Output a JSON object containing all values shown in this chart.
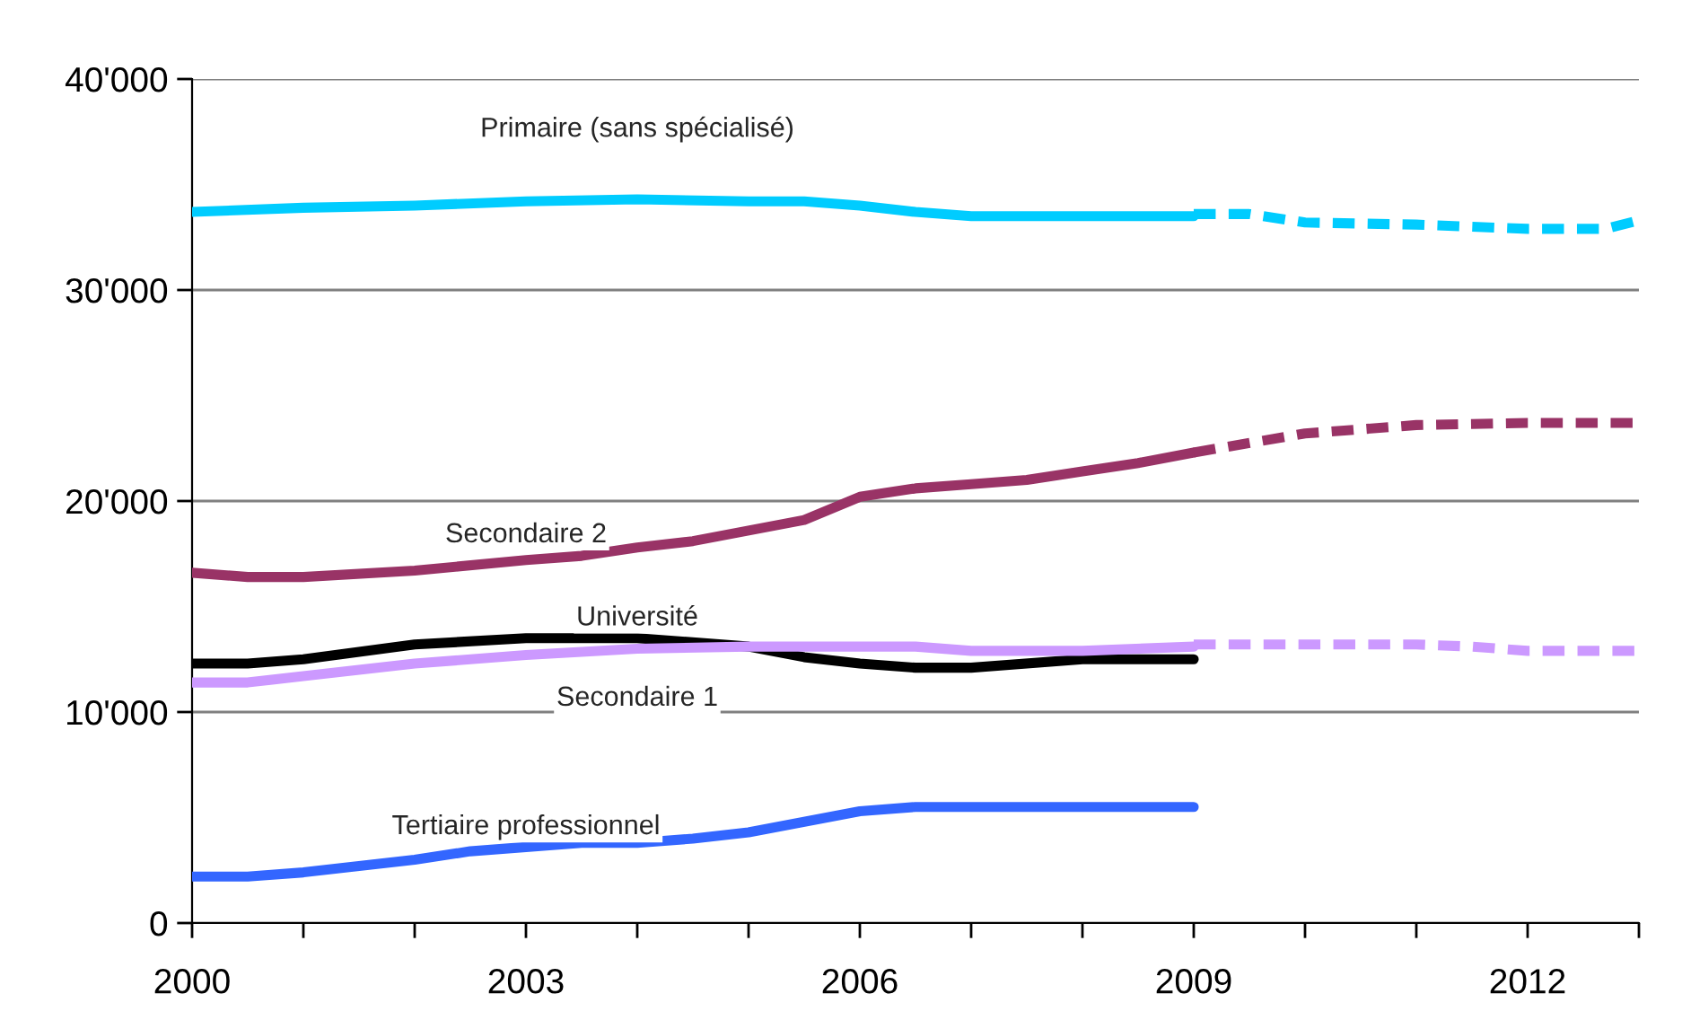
{
  "chart_data": {
    "type": "line",
    "xlim": [
      2000,
      2013
    ],
    "xticks": [
      2000,
      {
        "value": 2001,
        "label": null
      },
      {
        "value": 2002,
        "label": null
      },
      2003,
      {
        "value": 2004,
        "label": null
      },
      {
        "value": 2005,
        "label": null
      },
      2006,
      {
        "value": 2007,
        "label": null
      },
      {
        "value": 2008,
        "label": null
      },
      2009,
      {
        "value": 2010,
        "label": null
      },
      {
        "value": 2011,
        "label": null
      },
      2012,
      {
        "value": 2013,
        "label": null
      }
    ],
    "ylim": [
      0,
      40000
    ],
    "yticks": [
      {
        "value": 0,
        "label": "0"
      },
      {
        "value": 10000,
        "label": "10'000"
      },
      {
        "value": 20000,
        "label": "20'000"
      },
      {
        "value": 30000,
        "label": "30'000"
      },
      {
        "value": 40000,
        "label": "40'000"
      }
    ],
    "grid": "y",
    "legend": false,
    "marker": "none",
    "series": [
      {
        "name": "Primaire (sans spécialisé)",
        "color": "#00ccff",
        "line_style": "solid",
        "x": [
          2000,
          2001,
          2002,
          2003,
          2004,
          2005,
          2005.5,
          2006,
          2006.5,
          2007,
          2008,
          2009
        ],
        "values": [
          33700,
          33900,
          34000,
          34200,
          34300,
          34200,
          34200,
          34000,
          33700,
          33500,
          33500,
          33500
        ]
      },
      {
        "color": "#00ccff",
        "line_style": "dashed",
        "x": [
          2009,
          2009.5,
          2010,
          2011,
          2012,
          2012.7,
          2013
        ],
        "values": [
          33600,
          33600,
          33200,
          33100,
          32900,
          32900,
          33300
        ]
      },
      {
        "name": "Secondaire 2",
        "color": "#993366",
        "line_style": "solid",
        "x": [
          2000,
          2000.5,
          2001,
          2002,
          2003,
          2003.5,
          2004,
          2004.5,
          2005,
          2005.5,
          2006,
          2006.5,
          2007,
          2007.5,
          2008,
          2008.5,
          2009
        ],
        "values": [
          16600,
          16400,
          16400,
          16700,
          17200,
          17400,
          17800,
          18100,
          18600,
          19100,
          20200,
          20600,
          20800,
          21000,
          21400,
          21800,
          22300
        ]
      },
      {
        "color": "#993366",
        "line_style": "dashed",
        "x": [
          2009,
          2010,
          2011,
          2012,
          2013
        ],
        "values": [
          22300,
          23200,
          23600,
          23700,
          23700
        ]
      },
      {
        "name": "Université",
        "color": "#000000",
        "line_style": "solid",
        "x": [
          2000,
          2000.5,
          2001,
          2002,
          2003,
          2004,
          2005,
          2005.5,
          2006,
          2006.5,
          2007,
          2008,
          2009
        ],
        "values": [
          12300,
          12300,
          12500,
          13200,
          13500,
          13500,
          13100,
          12600,
          12300,
          12100,
          12100,
          12500,
          12500
        ]
      },
      {
        "name": "Secondaire 1",
        "color": "#cc99ff",
        "line_style": "solid",
        "x": [
          2000,
          2000.5,
          2001,
          2002,
          2003,
          2004,
          2005,
          2006,
          2006.5,
          2007,
          2008,
          2009
        ],
        "values": [
          11400,
          11400,
          11700,
          12300,
          12700,
          13000,
          13100,
          13100,
          13100,
          12900,
          12900,
          13100
        ]
      },
      {
        "color": "#cc99ff",
        "line_style": "dashed",
        "x": [
          2009,
          2011,
          2011.5,
          2012,
          2013
        ],
        "values": [
          13200,
          13200,
          13100,
          12900,
          12900
        ]
      },
      {
        "name": "Tertiaire professionnel",
        "color": "#3366ff",
        "line_style": "solid",
        "x": [
          2000,
          2000.5,
          2001,
          2002,
          2002.5,
          2003,
          2003.5,
          2004,
          2004.5,
          2005,
          2005.5,
          2006,
          2006.5,
          2007,
          2009
        ],
        "values": [
          2200,
          2200,
          2400,
          3000,
          3400,
          3600,
          3800,
          3800,
          4000,
          4300,
          4800,
          5300,
          5500,
          5500,
          5500
        ]
      }
    ]
  }
}
